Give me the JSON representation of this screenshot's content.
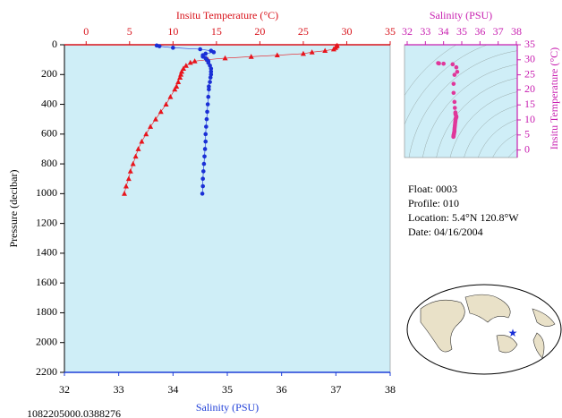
{
  "chart_data": [
    {
      "type": "profile",
      "ylabel": "Pressure (decibar)",
      "ylim": [
        0,
        2200
      ],
      "y_inverted": true,
      "yticks": [
        0,
        200,
        400,
        600,
        800,
        1000,
        1200,
        1400,
        1600,
        1800,
        2000,
        2200
      ],
      "xlabel": "Salinity (PSU)",
      "xlim": [
        32,
        38
      ],
      "xticks": [
        32,
        33,
        34,
        35,
        36,
        37,
        38
      ],
      "xcolor": "#1f3fd8",
      "x2label": "Insitu Temperature (°C)",
      "x2lim": [
        -2.5,
        35
      ],
      "x2ticks": [
        0,
        5,
        10,
        15,
        20,
        25,
        30,
        35
      ],
      "x2color": "#d8121a",
      "background": "#cfeef7",
      "y": [
        5,
        10,
        20,
        30,
        40,
        50,
        60,
        70,
        80,
        90,
        100,
        110,
        120,
        140,
        160,
        180,
        200,
        220,
        250,
        280,
        300,
        350,
        400,
        450,
        500,
        550,
        600,
        650,
        700,
        750,
        800,
        850,
        900,
        950,
        1000
      ],
      "series": [
        {
          "color": "#e8141c",
          "marker": "triangle",
          "axis": "x2",
          "values": [
            28.9,
            28.8,
            28.7,
            28.5,
            27.5,
            26,
            25,
            22,
            19,
            16,
            14,
            12.5,
            12,
            11.5,
            11.2,
            11,
            10.9,
            10.8,
            10.6,
            10.4,
            10.2,
            9.7,
            9.2,
            8.6,
            8.0,
            7.4,
            6.9,
            6.4,
            6.0,
            5.7,
            5.4,
            5.1,
            4.9,
            4.6,
            4.4
          ]
        },
        {
          "color": "#1a2fd6",
          "marker": "circle",
          "values": [
            33.7,
            33.75,
            34.0,
            34.5,
            34.7,
            34.75,
            34.6,
            34.55,
            34.55,
            34.6,
            34.62,
            34.65,
            34.65,
            34.68,
            34.7,
            34.7,
            34.7,
            34.69,
            34.68,
            34.66,
            34.66,
            34.65,
            34.64,
            34.63,
            34.62,
            34.61,
            34.6,
            34.6,
            34.59,
            34.58,
            34.57,
            34.56,
            34.55,
            34.55,
            34.54
          ]
        }
      ]
    },
    {
      "type": "scatter",
      "xlabel": "Salinity (PSU)",
      "xlim": [
        32,
        38
      ],
      "xticks": [
        32,
        33,
        34,
        35,
        36,
        37,
        38
      ],
      "ylabel": "Insitu Temperature (°C)",
      "ylim": [
        -2.5,
        35
      ],
      "yticks": [
        0,
        5,
        10,
        15,
        20,
        25,
        30,
        35
      ],
      "color": "#e0379a",
      "axis_color": "#c81fb0",
      "background": "#cfeef7",
      "x": [
        33.7,
        33.75,
        34.0,
        34.5,
        34.7,
        34.75,
        34.6,
        34.55,
        34.55,
        34.6,
        34.62,
        34.65,
        34.65,
        34.68,
        34.7,
        34.7,
        34.7,
        34.69,
        34.68,
        34.66,
        34.66,
        34.65,
        34.64,
        34.63,
        34.62,
        34.61,
        34.6,
        34.6,
        34.59,
        34.58,
        34.57,
        34.56,
        34.55,
        34.55,
        34.54
      ],
      "values": [
        28.9,
        28.8,
        28.7,
        28.5,
        27.5,
        26,
        25,
        22,
        19,
        16,
        14,
        12.5,
        12,
        11.5,
        11.2,
        11,
        10.9,
        10.8,
        10.6,
        10.4,
        10.2,
        9.7,
        9.2,
        8.6,
        8.0,
        7.4,
        6.9,
        6.4,
        6.0,
        5.7,
        5.4,
        5.1,
        4.9,
        4.6,
        4.4
      ]
    }
  ],
  "info": [
    "Float:  0003",
    "Profile:  010",
    "Location:  5.4°N  120.8°W",
    "Date:  04/16/2004"
  ],
  "footer": "1082205000.0388276"
}
